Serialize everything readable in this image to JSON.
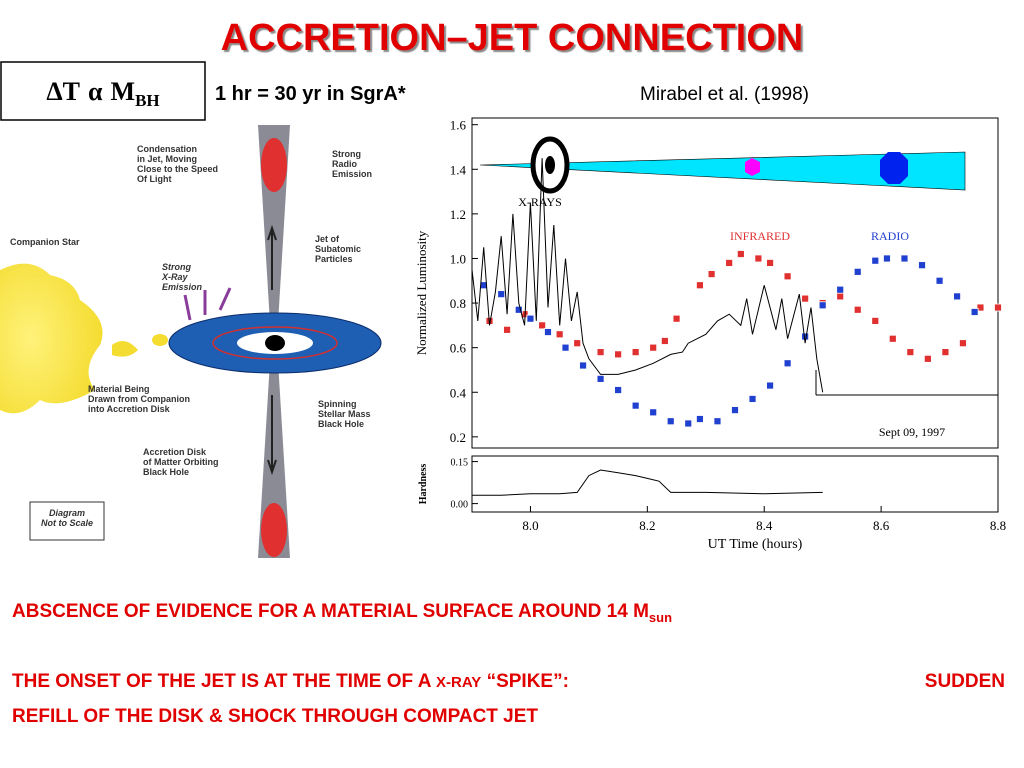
{
  "title": "ACCRETION–JET CONNECTION",
  "formula": {
    "lhs": "ΔT",
    "relation": "α",
    "rhs": "M",
    "rhs_sub": "BH"
  },
  "scale_note": "1 hr = 30 yr in SgrA*",
  "citation": "Mirabel et al. (1998)",
  "diagram": {
    "labels": [
      [
        "Companion Star"
      ],
      [
        "Condensation",
        "in Jet, Moving",
        "Close to the Speed",
        "Of Light"
      ],
      [
        "Strong",
        "Radio",
        "Emission"
      ],
      [
        "Jet of",
        "Subatomic",
        "Particles"
      ],
      [
        "Strong",
        "X-Ray",
        "Emission"
      ],
      [
        "Material Being",
        "Drawn from Companion",
        "into Accretion Disk"
      ],
      [
        "Spinning",
        "Stellar Mass",
        "Black Hole"
      ],
      [
        "Accretion Disk",
        "of Matter Orbiting",
        "Black Hole"
      ],
      [
        "Diagram",
        "Not to Scale"
      ]
    ]
  },
  "plot": {
    "ylabel": "Normalized Luminosity",
    "y2label": "Hardness",
    "xlabel": "UT Time (hours)",
    "annotations": [
      "X-RAYS",
      "INFRARED",
      "RADIO",
      "Sept 09, 1997"
    ],
    "xlim": [
      7.9,
      8.8
    ],
    "xticks": [
      {
        "value": 8,
        "label": "8.0"
      },
      8.2,
      8.4,
      8.6,
      8.8
    ],
    "ylim": [
      0.15,
      1.63
    ],
    "yticks": [
      1.6,
      1.4,
      1.2,
      {
        "value": 1,
        "label": "1.0"
      },
      0.8,
      0.6,
      0.4,
      0.2
    ],
    "y2lim": [
      -0.03,
      0.17
    ],
    "y2ticks": [
      0.15,
      {
        "value": 0,
        "label": "0.00"
      }
    ],
    "series": [
      {
        "name": "INFRARED",
        "color": "#e03030",
        "x": [
          7.93,
          7.96,
          7.99,
          8.02,
          8.05,
          8.08,
          8.12,
          8.15,
          8.18,
          8.21,
          8.23,
          8.25,
          8.29,
          8.31,
          8.34,
          8.36,
          8.39,
          8.41,
          8.44,
          8.47,
          8.5,
          8.53,
          8.56,
          8.59,
          8.62,
          8.65,
          8.68,
          8.71,
          8.74,
          8.77,
          8.8
        ],
        "values": [
          0.72,
          0.68,
          0.75,
          0.7,
          0.66,
          0.62,
          0.58,
          0.57,
          0.58,
          0.6,
          0.63,
          0.73,
          0.88,
          0.93,
          0.98,
          1.02,
          1.0,
          0.98,
          0.92,
          0.82,
          0.8,
          0.83,
          0.77,
          0.72,
          0.64,
          0.58,
          0.55,
          0.58,
          0.62,
          0.78,
          0.78
        ]
      },
      {
        "name": "RADIO",
        "color": "#2040d0",
        "x": [
          7.92,
          7.95,
          7.98,
          8.0,
          8.03,
          8.06,
          8.09,
          8.12,
          8.15,
          8.18,
          8.21,
          8.24,
          8.27,
          8.29,
          8.32,
          8.35,
          8.38,
          8.41,
          8.44,
          8.47,
          8.5,
          8.53,
          8.56,
          8.59,
          8.61,
          8.64,
          8.67,
          8.7,
          8.73,
          8.76
        ],
        "values": [
          0.88,
          0.84,
          0.77,
          0.73,
          0.67,
          0.6,
          0.52,
          0.46,
          0.41,
          0.34,
          0.31,
          0.27,
          0.26,
          0.28,
          0.27,
          0.32,
          0.37,
          0.43,
          0.53,
          0.65,
          0.79,
          0.86,
          0.94,
          0.99,
          1.0,
          1.0,
          0.97,
          0.9,
          0.83,
          0.76
        ]
      },
      {
        "name": "X-RAYS",
        "color": "#000000",
        "x": [
          7.9,
          7.91,
          7.92,
          7.93,
          7.94,
          7.95,
          7.96,
          7.97,
          7.98,
          7.99,
          8.0,
          8.01,
          8.02,
          8.03,
          8.04,
          8.05,
          8.06,
          8.07,
          8.08,
          8.09,
          8.1,
          8.12,
          8.15,
          8.18,
          8.21,
          8.24,
          8.26,
          8.27,
          8.3,
          8.32,
          8.34,
          8.36,
          8.37,
          8.38,
          8.4,
          8.42,
          8.43,
          8.44,
          8.46,
          8.47,
          8.48,
          8.49,
          8.5
        ],
        "values": [
          0.95,
          0.72,
          1.05,
          0.7,
          0.85,
          1.1,
          0.75,
          1.2,
          0.8,
          0.7,
          1.25,
          0.72,
          1.45,
          0.78,
          1.15,
          0.7,
          1.0,
          0.72,
          0.85,
          0.62,
          0.55,
          0.48,
          0.48,
          0.5,
          0.53,
          0.57,
          0.58,
          0.62,
          0.66,
          0.72,
          0.75,
          0.7,
          0.82,
          0.66,
          0.88,
          0.68,
          0.82,
          0.64,
          0.84,
          0.62,
          0.78,
          0.55,
          0.4
        ]
      },
      {
        "name": "Hardness",
        "color": "#000000",
        "axis": "y2",
        "x": [
          7.9,
          7.95,
          8.0,
          8.05,
          8.08,
          8.1,
          8.12,
          8.15,
          8.18,
          8.2,
          8.22,
          8.24,
          8.3,
          8.4,
          8.5
        ],
        "values": [
          0.03,
          0.03,
          0.035,
          0.035,
          0.04,
          0.1,
          0.12,
          0.11,
          0.1,
          0.09,
          0.08,
          0.04,
          0.04,
          0.035,
          0.04
        ]
      }
    ]
  },
  "notes": {
    "absence": {
      "text": "ABSCENCE OF EVIDENCE FOR A MATERIAL SURFACE AROUND 14 M",
      "sub": "sun"
    },
    "onset": {
      "lead": "THE ONSET OF THE JET IS AT THE TIME OF A ",
      "xray": "X-RAY",
      "spike": " “SPIKE”:",
      "sudden": "SUDDEN",
      "rest": "REFILL OF THE DISK & SHOCK THROUGH COMPACT JET"
    }
  }
}
